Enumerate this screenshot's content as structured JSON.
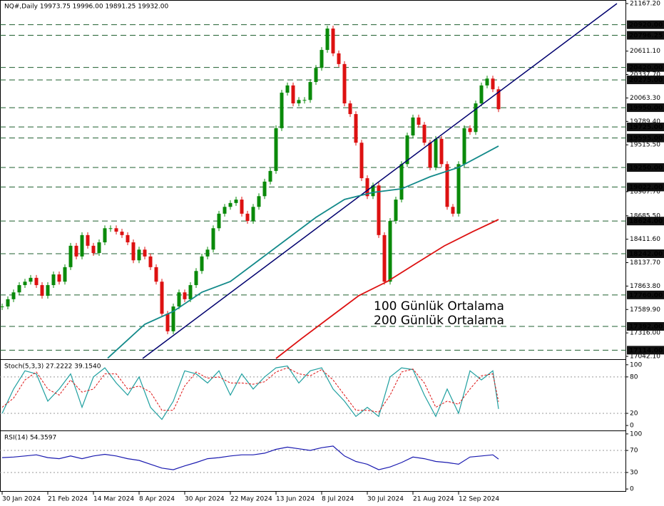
{
  "chart_data": [
    {
      "type": "candlestick",
      "title": "NQ#,Daily  19973.75 19996.00 19891.25 19932.00",
      "xlim": [
        -0.75,
        218.75
      ],
      "ylim": [
        17017,
        21209
      ],
      "x": [
        0,
        2,
        4,
        6,
        8,
        10,
        12,
        14,
        16,
        18,
        20,
        22,
        24,
        26,
        28,
        30,
        32,
        34,
        36,
        38,
        40,
        42,
        44,
        46,
        48,
        50,
        52,
        54,
        56,
        58,
        60,
        62,
        64,
        66,
        68,
        70,
        72,
        74,
        76,
        78,
        80,
        82,
        84,
        86,
        88,
        90,
        92,
        94,
        96,
        98,
        100,
        102,
        104,
        106,
        108,
        110,
        112,
        114,
        116,
        118,
        120,
        122,
        124,
        126,
        128,
        130,
        132,
        134,
        136,
        138,
        140,
        142,
        144,
        146,
        148,
        150,
        152,
        154,
        156,
        158,
        160,
        162,
        164,
        166,
        168,
        170,
        172,
        174
      ],
      "values": [
        17625,
        17710,
        17790,
        17875,
        17915,
        17960,
        17875,
        17750,
        17875,
        18000,
        17915,
        18085,
        18335,
        18210,
        18460,
        18335,
        18250,
        18375,
        18540,
        18540,
        18500,
        18460,
        18375,
        18165,
        18290,
        18210,
        18085,
        17915,
        17540,
        17335,
        17625,
        17790,
        17710,
        17875,
        18040,
        18210,
        18290,
        18540,
        18710,
        18790,
        18835,
        18875,
        18710,
        18625,
        18790,
        18915,
        19085,
        19210,
        19710,
        20125,
        20210,
        20000,
        20040,
        20040,
        20250,
        20415,
        20625,
        20875,
        20585,
        20460,
        20000,
        19875,
        19540,
        19125,
        18915,
        19040,
        18460,
        17915,
        18625,
        18875,
        19290,
        19625,
        19835,
        19750,
        19540,
        19250,
        19585,
        19290,
        18790,
        18710,
        19290,
        19710,
        19665,
        20000,
        20210,
        20290,
        20165,
        19932
      ],
      "up_color": "#0a8a0a",
      "down_color": "#dd1111",
      "series": [
        {
          "name": "100 Günlük Ortalama",
          "color": "#138a8a",
          "x": [
            37,
            50,
            60,
            70,
            80,
            90,
            100,
            110,
            120,
            130,
            140,
            150,
            160,
            174
          ],
          "values": [
            17020,
            17417,
            17567,
            17792,
            17917,
            18167,
            18417,
            18667,
            18876,
            18959,
            19001,
            19142,
            19251,
            19501
          ]
        },
        {
          "name": "200 Günlük Ortalama",
          "color": "#dd1111",
          "x": [
            96,
            105,
            115,
            125,
            135,
            145,
            155,
            165,
            174
          ],
          "values": [
            17017,
            17251,
            17501,
            17751,
            17917,
            18126,
            18334,
            18501,
            18642
          ]
        }
      ],
      "trendline": {
        "x": [
          49.25,
          215.5
        ],
        "values": [
          17017,
          21167
        ],
        "color": "#00006e"
      },
      "yticks": [
        {
          "value": 21167.2,
          "label": "21167.20"
        },
        {
          "value": 20611.1,
          "label": "20611.10"
        },
        {
          "value": 20337.7,
          "label": "20337.70"
        },
        {
          "value": 20063.3,
          "label": "20063.30"
        },
        {
          "value": 19789.4,
          "label": "19789.40"
        },
        {
          "value": 19515.5,
          "label": "19515.50"
        },
        {
          "value": 18967.7,
          "label": "18967.70"
        },
        {
          "value": 18685.5,
          "label": "18685.50"
        },
        {
          "value": 18411.6,
          "label": "18411.60"
        },
        {
          "value": 18137.7,
          "label": "18137.70"
        },
        {
          "value": 17863.8,
          "label": "17863.80"
        },
        {
          "value": 17589.9,
          "label": "17589.90"
        },
        {
          "value": 17316,
          "label": "17316.00"
        },
        {
          "value": 17042.1,
          "label": "17042.10"
        }
      ],
      "levels": [
        {
          "value": 20920,
          "label": "20920.00"
        },
        {
          "value": 20796.25,
          "label": "20796.25"
        },
        {
          "value": 20420,
          "label": "20420.00"
        },
        {
          "value": 20275,
          "label": "20275.00"
        },
        {
          "value": 19950,
          "label": "19950.00"
        },
        {
          "value": 19725,
          "label": "19725.00"
        },
        {
          "value": 19595,
          "label": "19595.00"
        },
        {
          "value": 19250,
          "label": "19250.00"
        },
        {
          "value": 19022,
          "label": "19022.00"
        },
        {
          "value": 18624,
          "label": "18624.00"
        },
        {
          "value": 18242,
          "label": "18242.00"
        },
        {
          "value": 17760,
          "label": "17760.00"
        },
        {
          "value": 17392,
          "label": "17392.00"
        },
        {
          "value": 17114,
          "label": "17114.00"
        }
      ]
    },
    {
      "type": "line",
      "title": "Stoch(5,3,3) 27.2222 39.1540",
      "xlim": [
        -0.75,
        218.75
      ],
      "ylim": [
        -7,
        108
      ],
      "yticks": [
        0,
        20,
        80,
        100
      ],
      "levels": [
        20,
        80
      ],
      "x": [
        0,
        4,
        8,
        12,
        16,
        20,
        24,
        28,
        32,
        36,
        40,
        44,
        48,
        52,
        56,
        60,
        64,
        68,
        72,
        76,
        80,
        84,
        88,
        92,
        96,
        100,
        104,
        108,
        112,
        116,
        120,
        124,
        128,
        132,
        136,
        140,
        144,
        148,
        152,
        156,
        160,
        164,
        168,
        172,
        174
      ],
      "series": [
        {
          "color": "#20a0a0",
          "values": [
            20,
            60,
            90,
            85,
            40,
            60,
            85,
            30,
            80,
            95,
            70,
            50,
            80,
            30,
            10,
            40,
            90,
            85,
            70,
            90,
            50,
            85,
            60,
            80,
            95,
            98,
            70,
            90,
            95,
            60,
            40,
            15,
            30,
            15,
            80,
            95,
            92,
            50,
            15,
            60,
            20,
            90,
            75,
            90,
            27.2222
          ]
        },
        {
          "color": "#dd1111",
          "dashed": true,
          "values": [
            30,
            45,
            75,
            88,
            60,
            50,
            75,
            55,
            60,
            85,
            85,
            60,
            65,
            55,
            25,
            25,
            65,
            88,
            78,
            80,
            70,
            70,
            68,
            72,
            88,
            95,
            85,
            82,
            92,
            75,
            50,
            25,
            25,
            22,
            50,
            88,
            93,
            70,
            30,
            40,
            35,
            60,
            82,
            85,
            39.154
          ]
        }
      ]
    },
    {
      "type": "line",
      "title": "RSI(14) 54.3597",
      "xlim": [
        -0.75,
        218.75
      ],
      "ylim": [
        -5,
        105
      ],
      "yticks": [
        0,
        30,
        70,
        100
      ],
      "levels": [
        30,
        70
      ],
      "x": [
        0,
        4,
        8,
        12,
        16,
        20,
        24,
        28,
        32,
        36,
        40,
        44,
        48,
        52,
        56,
        60,
        64,
        68,
        72,
        76,
        80,
        84,
        88,
        92,
        96,
        100,
        104,
        108,
        112,
        116,
        120,
        124,
        128,
        132,
        136,
        140,
        144,
        148,
        152,
        156,
        160,
        164,
        168,
        172,
        174
      ],
      "series": [
        {
          "color": "#1a1ab0",
          "values": [
            57,
            58,
            60,
            62,
            57,
            55,
            60,
            55,
            60,
            63,
            60,
            55,
            52,
            45,
            38,
            35,
            42,
            48,
            55,
            57,
            60,
            62,
            62,
            65,
            72,
            76,
            73,
            70,
            75,
            78,
            60,
            50,
            45,
            35,
            40,
            48,
            58,
            55,
            50,
            48,
            45,
            58,
            60,
            62,
            54.3597
          ]
        }
      ],
      "xticks": [
        {
          "value": 0,
          "label": "30 Jan 2024"
        },
        {
          "value": 16,
          "label": "21 Feb 2024"
        },
        {
          "value": 32,
          "label": "14 Mar 2024"
        },
        {
          "value": 48,
          "label": "8 Apr 2024"
        },
        {
          "value": 64,
          "label": "30 Apr 2024"
        },
        {
          "value": 80,
          "label": "22 May 2024"
        },
        {
          "value": 96,
          "label": "13 Jun 2024"
        },
        {
          "value": 112,
          "label": "8 Jul 2024"
        },
        {
          "value": 128,
          "label": "30 Jul 2024"
        },
        {
          "value": 144,
          "label": "21 Aug 2024"
        },
        {
          "value": 160,
          "label": "12 Sep 2024"
        }
      ]
    }
  ]
}
